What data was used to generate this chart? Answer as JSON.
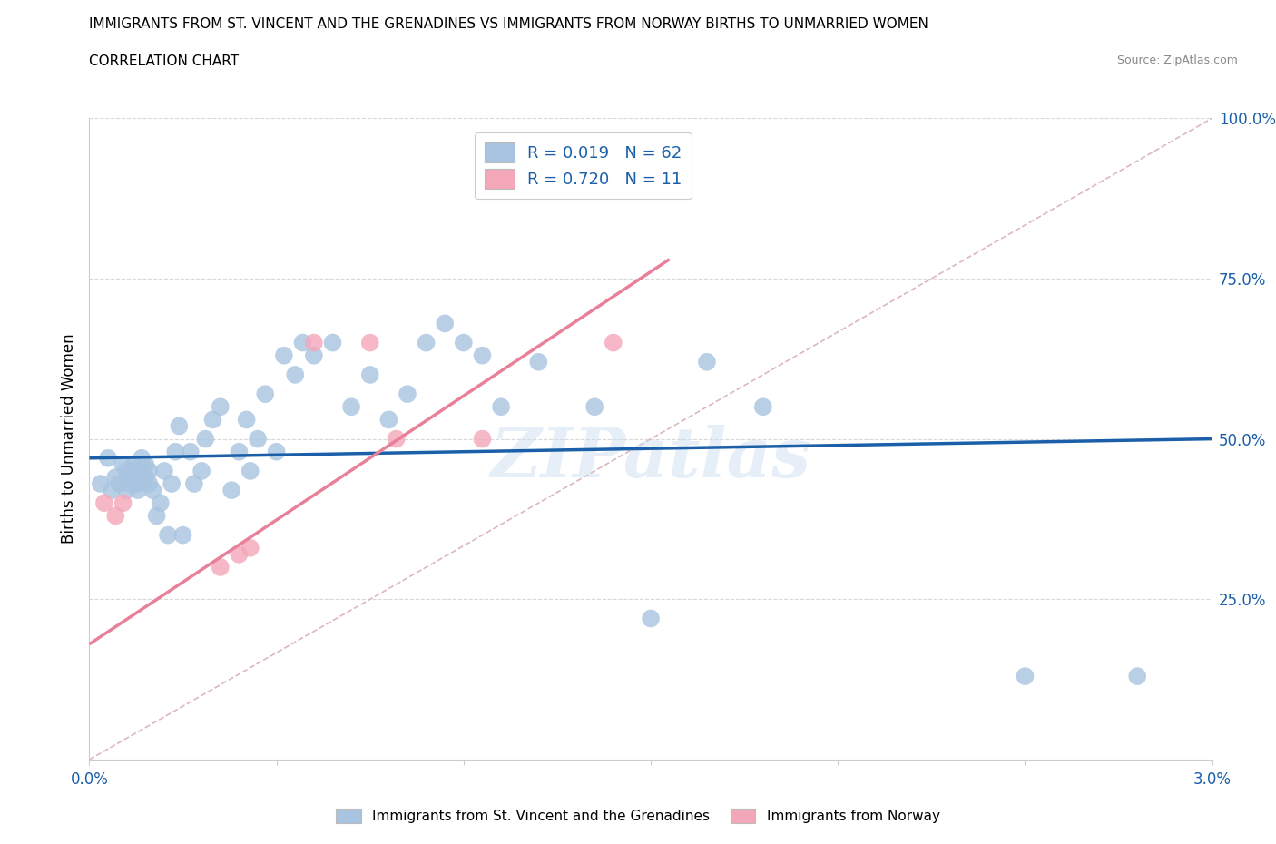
{
  "title_line1": "IMMIGRANTS FROM ST. VINCENT AND THE GRENADINES VS IMMIGRANTS FROM NORWAY BIRTHS TO UNMARRIED WOMEN",
  "title_line2": "CORRELATION CHART",
  "source_text": "Source: ZipAtlas.com",
  "ylabel": "Births to Unmarried Women",
  "xlim": [
    0.0,
    3.0
  ],
  "ylim": [
    0.0,
    100.0
  ],
  "blue_color": "#a8c4e0",
  "pink_color": "#f4a7b9",
  "blue_line_color": "#1a5fa8",
  "pink_line_color": "#e8809a",
  "ref_line_color": "#d8b0b8",
  "grid_color": "#d8d8d8",
  "watermark": "ZIPatlas",
  "legend_r_blue": "R = 0.019",
  "legend_n_blue": "N = 62",
  "legend_r_pink": "R = 0.720",
  "legend_n_pink": "N = 11",
  "legend_label_blue": "Immigrants from St. Vincent and the Grenadines",
  "legend_label_pink": "Immigrants from Norway",
  "blue_scatter_x": [
    0.03,
    0.05,
    0.06,
    0.07,
    0.08,
    0.09,
    0.1,
    0.1,
    0.11,
    0.11,
    0.12,
    0.12,
    0.13,
    0.13,
    0.14,
    0.15,
    0.15,
    0.16,
    0.16,
    0.17,
    0.18,
    0.19,
    0.2,
    0.21,
    0.22,
    0.23,
    0.24,
    0.25,
    0.27,
    0.28,
    0.3,
    0.31,
    0.33,
    0.35,
    0.38,
    0.4,
    0.42,
    0.43,
    0.45,
    0.47,
    0.5,
    0.52,
    0.55,
    0.57,
    0.6,
    0.65,
    0.7,
    0.75,
    0.8,
    0.85,
    0.9,
    0.95,
    1.0,
    1.05,
    1.1,
    1.2,
    1.35,
    1.5,
    1.65,
    1.8,
    2.5,
    2.8
  ],
  "blue_scatter_y": [
    43,
    47,
    42,
    44,
    43,
    46,
    45,
    42,
    44,
    43,
    46,
    45,
    43,
    42,
    47,
    44,
    46,
    45,
    43,
    42,
    38,
    40,
    45,
    35,
    43,
    48,
    52,
    35,
    48,
    43,
    45,
    50,
    53,
    55,
    42,
    48,
    53,
    45,
    50,
    57,
    48,
    63,
    60,
    65,
    63,
    65,
    55,
    60,
    53,
    57,
    65,
    68,
    65,
    63,
    55,
    62,
    55,
    22,
    62,
    55,
    13,
    13
  ],
  "pink_scatter_x": [
    0.04,
    0.07,
    0.09,
    0.35,
    0.4,
    0.43,
    0.6,
    0.75,
    0.82,
    1.05,
    1.4
  ],
  "pink_scatter_y": [
    40,
    38,
    40,
    30,
    32,
    33,
    65,
    65,
    50,
    50,
    65
  ],
  "blue_trend_x": [
    0.0,
    3.0
  ],
  "blue_trend_y": [
    47.0,
    50.0
  ],
  "pink_trend_x": [
    0.0,
    1.55
  ],
  "pink_trend_y": [
    18.0,
    78.0
  ],
  "ref_line_x": [
    0.0,
    3.0
  ],
  "ref_line_y": [
    0.0,
    100.0
  ]
}
